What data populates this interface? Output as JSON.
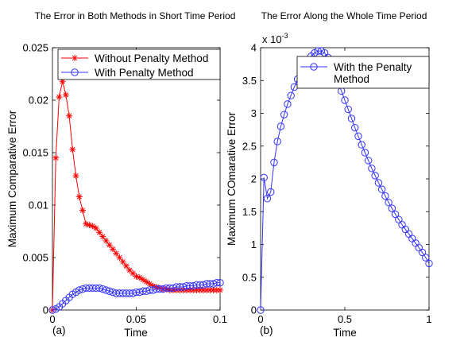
{
  "chart_data": [
    {
      "type": "line",
      "panel_label": "(a)",
      "title": "The Error in Both Methods in Short Time Period",
      "xlabel": "Time",
      "ylabel": "Maximum Comparative Error",
      "xlim": [
        0,
        0.1
      ],
      "ylim": [
        0,
        0.025
      ],
      "xticks": [
        "0",
        "0.05",
        "0.1"
      ],
      "yticks": [
        "0",
        "0.005",
        "0.01",
        "0.015",
        "0.02",
        "0.025"
      ],
      "legend_position": "top-right",
      "series": [
        {
          "name": "Without Penalty Method",
          "color": "#ff0000",
          "marker": "asterisk",
          "x": [
            0,
            0.002,
            0.004,
            0.006,
            0.008,
            0.01,
            0.012,
            0.014,
            0.016,
            0.018,
            0.02,
            0.022,
            0.024,
            0.026,
            0.028,
            0.03,
            0.032,
            0.034,
            0.036,
            0.038,
            0.04,
            0.042,
            0.044,
            0.046,
            0.048,
            0.05,
            0.052,
            0.054,
            0.056,
            0.058,
            0.06,
            0.062,
            0.064,
            0.066,
            0.068,
            0.07,
            0.072,
            0.074,
            0.076,
            0.078,
            0.08,
            0.082,
            0.084,
            0.086,
            0.088,
            0.09,
            0.092,
            0.094,
            0.096,
            0.098,
            0.1
          ],
          "y": [
            0,
            0.0145,
            0.0203,
            0.0218,
            0.0205,
            0.0185,
            0.0153,
            0.0128,
            0.0108,
            0.0095,
            0.0082,
            0.0081,
            0.008,
            0.0078,
            0.0074,
            0.007,
            0.0066,
            0.0062,
            0.0058,
            0.0054,
            0.005,
            0.0046,
            0.0042,
            0.0038,
            0.0035,
            0.0032,
            0.0031,
            0.0029,
            0.0027,
            0.0025,
            0.0023,
            0.0022,
            0.0021,
            0.002,
            0.002,
            0.0019,
            0.0019,
            0.0019,
            0.0019,
            0.0019,
            0.0019,
            0.0019,
            0.0019,
            0.0019,
            0.0019,
            0.0019,
            0.0019,
            0.0019,
            0.0019,
            0.0019,
            0.0019
          ]
        },
        {
          "name": "With Penalty Method",
          "color": "#3333ff",
          "marker": "circle",
          "x": [
            0,
            0.002,
            0.004,
            0.006,
            0.008,
            0.01,
            0.012,
            0.014,
            0.016,
            0.018,
            0.02,
            0.022,
            0.024,
            0.026,
            0.028,
            0.03,
            0.032,
            0.034,
            0.036,
            0.038,
            0.04,
            0.042,
            0.044,
            0.046,
            0.048,
            0.05,
            0.052,
            0.054,
            0.056,
            0.058,
            0.06,
            0.062,
            0.064,
            0.066,
            0.068,
            0.07,
            0.072,
            0.074,
            0.076,
            0.078,
            0.08,
            0.082,
            0.084,
            0.086,
            0.088,
            0.09,
            0.092,
            0.094,
            0.096,
            0.098,
            0.1
          ],
          "y": [
            0,
            0.0001,
            0.0003,
            0.0006,
            0.0009,
            0.0012,
            0.0015,
            0.0017,
            0.0019,
            0.002,
            0.0021,
            0.0021,
            0.0021,
            0.0021,
            0.0021,
            0.002,
            0.0019,
            0.0018,
            0.0017,
            0.0016,
            0.0016,
            0.0016,
            0.0016,
            0.0016,
            0.0016,
            0.0017,
            0.0017,
            0.0018,
            0.0018,
            0.0019,
            0.0019,
            0.002,
            0.002,
            0.002,
            0.0021,
            0.0021,
            0.0021,
            0.0022,
            0.0022,
            0.0022,
            0.0023,
            0.0023,
            0.0023,
            0.0024,
            0.0024,
            0.0024,
            0.0025,
            0.0025,
            0.0025,
            0.0026,
            0.0026
          ]
        }
      ]
    },
    {
      "type": "line",
      "panel_label": "(b)",
      "title": "The Error Along the Whole Time Period",
      "xlabel": "Time",
      "ylabel": "Maximum COmarative Error",
      "y_multiplier": "x 10",
      "y_multiplier_exponent": "-3",
      "xlim": [
        0,
        1
      ],
      "ylim": [
        0,
        4
      ],
      "xticks": [
        "0",
        "0.5",
        "1"
      ],
      "yticks": [
        "0",
        "0.5",
        "1",
        "1.5",
        "2",
        "2.5",
        "3",
        "3.5",
        "4"
      ],
      "legend_position": "top-right",
      "series": [
        {
          "name": "With the Penalty Method",
          "legend_lines": [
            "With the Penalty",
            "Method"
          ],
          "color": "#3333ff",
          "marker": "circle",
          "x": [
            0,
            0.02,
            0.04,
            0.06,
            0.08,
            0.1,
            0.12,
            0.14,
            0.16,
            0.18,
            0.2,
            0.22,
            0.24,
            0.26,
            0.28,
            0.3,
            0.32,
            0.34,
            0.36,
            0.38,
            0.4,
            0.42,
            0.44,
            0.46,
            0.48,
            0.5,
            0.52,
            0.54,
            0.56,
            0.58,
            0.6,
            0.62,
            0.64,
            0.66,
            0.68,
            0.7,
            0.72,
            0.74,
            0.76,
            0.78,
            0.8,
            0.82,
            0.84,
            0.86,
            0.88,
            0.9,
            0.92,
            0.94,
            0.96,
            0.98,
            1.0
          ],
          "y": [
            0,
            2.02,
            1.7,
            1.8,
            2.25,
            2.57,
            2.8,
            2.98,
            3.14,
            3.27,
            3.4,
            3.52,
            3.62,
            3.72,
            3.8,
            3.87,
            3.92,
            3.95,
            3.95,
            3.92,
            3.85,
            3.75,
            3.62,
            3.48,
            3.34,
            3.2,
            3.06,
            2.92,
            2.78,
            2.65,
            2.52,
            2.4,
            2.28,
            2.16,
            2.05,
            1.94,
            1.84,
            1.74,
            1.64,
            1.55,
            1.46,
            1.38,
            1.3,
            1.23,
            1.16,
            1.09,
            1.02,
            0.95,
            0.88,
            0.8,
            0.71
          ]
        }
      ]
    }
  ]
}
